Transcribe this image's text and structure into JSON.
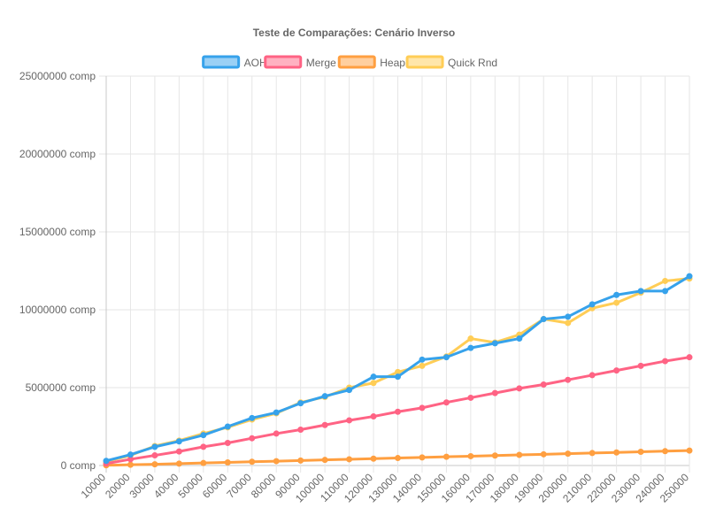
{
  "chart_data": {
    "type": "line",
    "title": "Teste de Comparações: Cenário Inverso",
    "xlabel": "",
    "ylabel": "",
    "y_unit_suffix": " comp",
    "ylim": [
      0,
      25000000
    ],
    "y_ticks": [
      0,
      5000000,
      10000000,
      15000000,
      20000000,
      25000000
    ],
    "grid": true,
    "legend_position": "top",
    "x": [
      10000,
      20000,
      30000,
      40000,
      50000,
      60000,
      70000,
      80000,
      90000,
      100000,
      110000,
      120000,
      130000,
      140000,
      150000,
      160000,
      170000,
      180000,
      190000,
      200000,
      210000,
      220000,
      230000,
      240000,
      250000
    ],
    "series": [
      {
        "name": "AOH",
        "color": "#36a2eb",
        "fill": "#9ad0f5",
        "values": [
          300000,
          700000,
          1200000,
          1550000,
          1950000,
          2500000,
          3050000,
          3400000,
          4000000,
          4450000,
          4850000,
          5700000,
          5700000,
          6800000,
          6950000,
          7550000,
          7850000,
          8150000,
          9400000,
          9550000,
          10350000,
          10950000,
          11200000,
          11200000,
          12150000
        ]
      },
      {
        "name": "Merge",
        "color": "#ff6384",
        "fill": "#ffb1c1",
        "values": [
          120000,
          400000,
          650000,
          900000,
          1200000,
          1450000,
          1750000,
          2050000,
          2300000,
          2600000,
          2900000,
          3150000,
          3450000,
          3700000,
          4050000,
          4350000,
          4650000,
          4950000,
          5200000,
          5500000,
          5800000,
          6100000,
          6400000,
          6700000,
          6950000
        ]
      },
      {
        "name": "Heap",
        "color": "#ff9f40",
        "fill": "#ffcf9f",
        "values": [
          15000,
          50000,
          80000,
          120000,
          160000,
          200000,
          240000,
          280000,
          320000,
          360000,
          400000,
          440000,
          480000,
          520000,
          560000,
          600000,
          640000,
          680000,
          720000,
          760000,
          800000,
          840000,
          880000,
          920000,
          960000
        ]
      },
      {
        "name": "Quick Rnd",
        "color": "#ffcd56",
        "fill": "#ffe6aa",
        "values": [
          250000,
          650000,
          1250000,
          1600000,
          2050000,
          2450000,
          2950000,
          3350000,
          4050000,
          4400000,
          5000000,
          5300000,
          6000000,
          6400000,
          7000000,
          8150000,
          7900000,
          8400000,
          9400000,
          9150000,
          10100000,
          10450000,
          11100000,
          11850000,
          12000000
        ]
      }
    ]
  }
}
